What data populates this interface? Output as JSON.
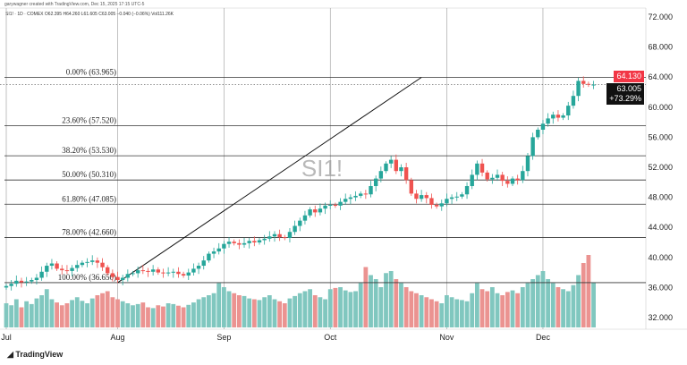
{
  "credit": "garywagner created with TradingView.com, Dec 15, 2025 17:15 UTC-5",
  "legend": "SI1! · 1D · COMEX  O62.395  H64.260  L61.605  C63.005  −0.040 (−0.06%)  Vol111.26K",
  "watermark": "SI1!",
  "logo": "TradingView",
  "price_tags": {
    "high": "64.130",
    "last": "63.005",
    "change": "+73.29%"
  },
  "colors": {
    "up": "#26a69a",
    "down": "#ef5350",
    "vol_up": "#80c7bf",
    "vol_down": "#eb9391",
    "high_tag": "#f23645"
  },
  "chart_data": {
    "type": "candlestick",
    "title": "SI1! · 1D · COMEX",
    "yticks": [
      "72.000",
      "68.000",
      "64.000",
      "60.000",
      "56.000",
      "52.000",
      "48.000",
      "44.000",
      "40.000",
      "36.000",
      "32.000"
    ],
    "ytick_values": [
      72,
      68,
      64,
      60,
      56,
      52,
      48,
      44,
      40,
      36,
      32
    ],
    "ylim": [
      32,
      72
    ],
    "xticks": [
      {
        "label": "Jul",
        "index": 0
      },
      {
        "label": "Aug",
        "index": 22
      },
      {
        "label": "Sep",
        "index": 43
      },
      {
        "label": "Oct",
        "index": 64
      },
      {
        "label": "Nov",
        "index": 87
      },
      {
        "label": "Dec",
        "index": 106
      }
    ],
    "fib_levels": [
      {
        "label": "0.00% (63.965)",
        "price": 63.965
      },
      {
        "label": "23.60% (57.520)",
        "price": 57.52
      },
      {
        "label": "38.20% (53.530)",
        "price": 53.53
      },
      {
        "label": "50.00% (50.310)",
        "price": 50.31
      },
      {
        "label": "61.80% (47.085)",
        "price": 47.085
      },
      {
        "label": "78.00% (42.660)",
        "price": 42.66
      },
      {
        "label": "100.00% (36.650)",
        "price": 36.65
      }
    ],
    "trendline": {
      "from": {
        "index": 22,
        "price": 36.65
      },
      "to": {
        "index": 82,
        "price": 63.965
      }
    },
    "close": [
      36.2,
      36.5,
      36.9,
      36.7,
      36.8,
      37.0,
      37.3,
      38.1,
      38.9,
      39.2,
      38.5,
      38.3,
      38.2,
      38.6,
      39.0,
      39.3,
      39.4,
      39.6,
      39.3,
      38.7,
      37.9,
      37.4,
      37.0,
      37.3,
      37.8,
      37.9,
      38.3,
      38.2,
      38.1,
      38.4,
      38.0,
      37.9,
      38.0,
      38.1,
      37.8,
      37.6,
      38.0,
      38.5,
      38.9,
      39.6,
      40.5,
      40.8,
      41.2,
      41.8,
      42.1,
      41.9,
      41.7,
      41.9,
      42.2,
      42.0,
      42.3,
      42.5,
      42.8,
      43.1,
      42.7,
      42.6,
      43.4,
      44.2,
      44.9,
      45.6,
      46.4,
      46.0,
      46.5,
      46.9,
      47.0,
      46.9,
      47.4,
      47.8,
      48.0,
      48.2,
      48.5,
      48.4,
      49.5,
      50.5,
      51.5,
      52.5,
      53.0,
      51.5,
      52.0,
      50.3,
      48.5,
      47.8,
      48.3,
      47.9,
      47.0,
      46.8,
      47.2,
      47.8,
      48.0,
      48.1,
      48.4,
      49.5,
      51.0,
      52.5,
      51.3,
      50.4,
      50.6,
      51.0,
      50.2,
      49.8,
      50.5,
      50.3,
      51.5,
      53.5,
      56.0,
      57.0,
      57.8,
      58.5,
      59.0,
      58.6,
      58.9,
      60.2,
      61.5,
      63.5,
      63.1,
      63.0,
      63.005
    ],
    "volume_k": [
      60,
      55,
      70,
      50,
      65,
      58,
      72,
      80,
      95,
      70,
      62,
      55,
      60,
      68,
      75,
      66,
      60,
      72,
      80,
      85,
      90,
      75,
      70,
      65,
      60,
      55,
      58,
      62,
      50,
      48,
      55,
      52,
      60,
      58,
      54,
      50,
      56,
      62,
      70,
      75,
      80,
      85,
      110,
      100,
      90,
      85,
      80,
      78,
      72,
      70,
      68,
      75,
      80,
      70,
      65,
      60,
      72,
      78,
      85,
      90,
      95,
      80,
      75,
      70,
      95,
      98,
      100,
      92,
      88,
      90,
      110,
      150,
      130,
      120,
      100,
      135,
      140,
      120,
      110,
      100,
      90,
      85,
      80,
      75,
      70,
      65,
      60,
      80,
      75,
      70,
      68,
      65,
      85,
      110,
      95,
      90,
      100,
      85,
      80,
      88,
      92,
      85,
      100,
      110,
      120,
      130,
      140,
      120,
      110,
      100,
      95,
      90,
      105,
      130,
      160,
      180,
      111.26
    ]
  }
}
